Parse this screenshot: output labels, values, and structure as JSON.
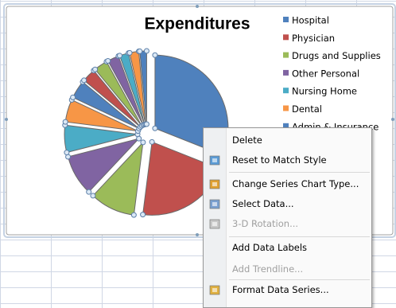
{
  "chart": {
    "type": "pie",
    "title": "Expenditures",
    "categories": [
      "Hospital",
      "Physician",
      "Drugs and Supplies",
      "Other Personal",
      "Nursing Home",
      "Dental",
      "Admin & Insurance",
      null,
      null,
      null,
      null,
      null,
      null
    ],
    "values": [
      31,
      21,
      10,
      9,
      6,
      5,
      4,
      3,
      3,
      2.5,
      2,
      2,
      1.5
    ],
    "colors": [
      "#4f81bd",
      "#c0504d",
      "#9bbb59",
      "#8064a2",
      "#4bacc6",
      "#f79646",
      "#4f81bd",
      "#c0504d",
      "#9bbb59",
      "#8064a2",
      "#4bacc6",
      "#f79646",
      "#4f81bd"
    ]
  },
  "menu": {
    "items": [
      {
        "label": "Delete"
      },
      {
        "label": "Reset to Match Style"
      },
      {
        "label": "Change Series Chart Type..."
      },
      {
        "label": "Select Data..."
      },
      {
        "label": "3-D Rotation...",
        "disabled": true
      },
      {
        "label": "Add Data Labels"
      },
      {
        "label": "Add Trendline...",
        "disabled": true
      },
      {
        "label": "Format Data Series..."
      }
    ]
  }
}
